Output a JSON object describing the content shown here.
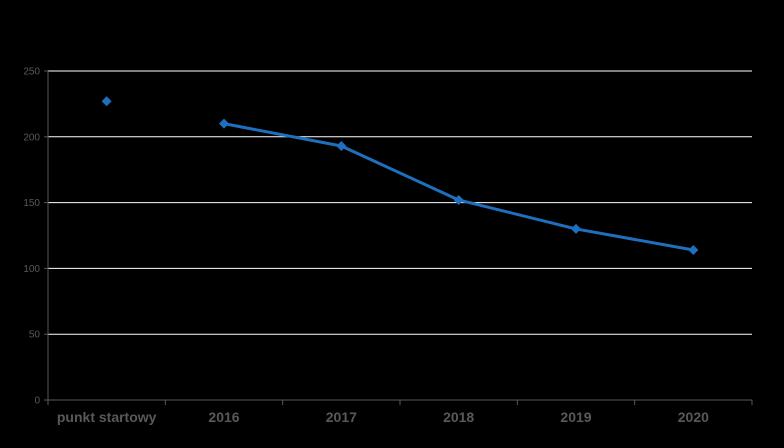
{
  "chart_data": {
    "type": "line",
    "title": "",
    "xlabel": "",
    "ylabel": "",
    "ylim": [
      0,
      250
    ],
    "yticks": [
      0,
      50,
      100,
      150,
      200,
      250
    ],
    "grid": true,
    "categories": [
      "punkt startowy",
      "2016",
      "2017",
      "2018",
      "2019",
      "2020"
    ],
    "series": [
      {
        "values": [
          227,
          210,
          193,
          152,
          130,
          114
        ],
        "color": "#1f6fbf",
        "marker": "diamond",
        "connect_from_index": 1
      }
    ],
    "colors": {
      "background": "#000000",
      "gridline": "#ffffff",
      "axis": "#595959",
      "tick_text": "#595959"
    }
  }
}
